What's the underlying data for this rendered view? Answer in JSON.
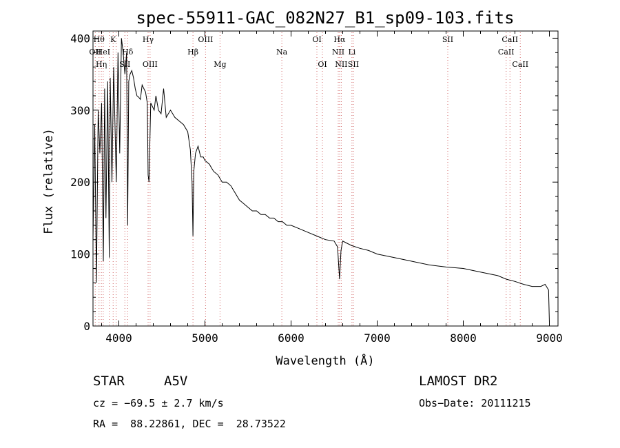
{
  "chart_data": {
    "type": "line",
    "title": "spec-55911-GAC_082N27_B1_sp09-103.fits",
    "xlabel": "Wavelength (Å)",
    "ylabel": "Flux (relative)",
    "xlim": [
      3700,
      9100
    ],
    "ylim": [
      0,
      410
    ],
    "xticks": [
      4000,
      5000,
      6000,
      7000,
      8000,
      9000
    ],
    "yticks": [
      0,
      100,
      200,
      300,
      400
    ],
    "grid": false,
    "line_color": "#000000",
    "marker_color": "#d06060",
    "series": [
      {
        "x": [
          3700,
          3720,
          3740,
          3760,
          3780,
          3800,
          3820,
          3835,
          3850,
          3870,
          3889,
          3900,
          3920,
          3940,
          3970,
          3990,
          4010,
          4030,
          4050,
          4070,
          4090,
          4102,
          4115,
          4130,
          4150,
          4170,
          4190,
          4210,
          4230,
          4250,
          4270,
          4290,
          4310,
          4330,
          4340,
          4350,
          4370,
          4390,
          4410,
          4430,
          4460,
          4490,
          4520,
          4550,
          4600,
          4650,
          4700,
          4750,
          4800,
          4830,
          4850,
          4861,
          4870,
          4890,
          4920,
          4950,
          4980,
          5000,
          5050,
          5100,
          5150,
          5200,
          5250,
          5300,
          5350,
          5400,
          5450,
          5500,
          5550,
          5600,
          5650,
          5700,
          5750,
          5800,
          5850,
          5900,
          5950,
          6000,
          6100,
          6200,
          6300,
          6400,
          6500,
          6540,
          6563,
          6580,
          6600,
          6650,
          6700,
          6800,
          6900,
          7000,
          7200,
          7400,
          7600,
          7800,
          8000,
          8200,
          8400,
          8500,
          8600,
          8700,
          8800,
          8900,
          8950,
          8990,
          9000
        ],
        "y": [
          120,
          280,
          60,
          300,
          240,
          310,
          90,
          330,
          150,
          340,
          95,
          345,
          200,
          360,
          200,
          380,
          240,
          400,
          380,
          350,
          380,
          140,
          340,
          350,
          355,
          345,
          330,
          320,
          318,
          315,
          335,
          330,
          325,
          310,
          210,
          200,
          310,
          305,
          300,
          320,
          300,
          295,
          330,
          290,
          300,
          290,
          285,
          280,
          270,
          245,
          200,
          125,
          215,
          240,
          250,
          235,
          235,
          230,
          225,
          215,
          210,
          200,
          200,
          195,
          185,
          175,
          170,
          165,
          160,
          160,
          155,
          155,
          150,
          150,
          145,
          145,
          140,
          140,
          135,
          130,
          125,
          120,
          118,
          110,
          65,
          105,
          118,
          115,
          112,
          108,
          105,
          100,
          95,
          90,
          85,
          82,
          80,
          75,
          70,
          65,
          62,
          58,
          55,
          55,
          58,
          50,
          5
        ]
      }
    ],
    "line_markers": [
      {
        "x": 3726,
        "label": "OII",
        "row": 2
      },
      {
        "x": 3770,
        "label": "Hθ",
        "row": 1
      },
      {
        "x": 3797,
        "label": "Hη",
        "row": 3
      },
      {
        "x": 3819,
        "label": "HeI",
        "row": 2
      },
      {
        "x": 3889,
        "label": "",
        "row": 0
      },
      {
        "x": 3934,
        "label": "K",
        "row": 1
      },
      {
        "x": 3969,
        "label": "",
        "row": 0
      },
      {
        "x": 4070,
        "label": "SII",
        "row": 3
      },
      {
        "x": 4102,
        "label": "Hδ",
        "row": 2
      },
      {
        "x": 4340,
        "label": "Hγ",
        "row": 1
      },
      {
        "x": 4363,
        "label": "OIII",
        "row": 3
      },
      {
        "x": 4861,
        "label": "Hβ",
        "row": 2
      },
      {
        "x": 5007,
        "label": "OIII",
        "row": 1
      },
      {
        "x": 5175,
        "label": "Mg",
        "row": 3
      },
      {
        "x": 5893,
        "label": "Na",
        "row": 2
      },
      {
        "x": 6300,
        "label": "OI",
        "row": 1
      },
      {
        "x": 6364,
        "label": "OI",
        "row": 3
      },
      {
        "x": 6548,
        "label": "NII",
        "row": 2
      },
      {
        "x": 6563,
        "label": "Hα",
        "row": 1
      },
      {
        "x": 6583,
        "label": "NII",
        "row": 3
      },
      {
        "x": 6707,
        "label": "Li",
        "row": 2
      },
      {
        "x": 6724,
        "label": "SII",
        "row": 3
      },
      {
        "x": 7820,
        "label": "SII",
        "row": 1
      },
      {
        "x": 8498,
        "label": "CaII",
        "row": 2
      },
      {
        "x": 8542,
        "label": "CaII",
        "row": 1
      },
      {
        "x": 8662,
        "label": "CaII",
        "row": 3
      }
    ]
  },
  "info": {
    "object_class": "STAR",
    "subclass": "A5V",
    "survey": "LAMOST DR2",
    "cz": "cz = −69.5 ± 2.7 km/s",
    "obs_date": "Obs−Date: 20111215",
    "coords": "RA =  88.22861, DEC =  28.73522"
  }
}
